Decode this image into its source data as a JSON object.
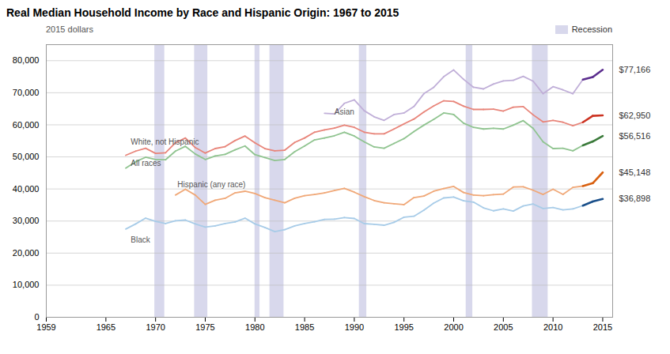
{
  "chart_data": {
    "type": "line",
    "title": "Real Median Household Income by Race and Hispanic Origin: 1967 to 2015",
    "subtitle": "2015 dollars",
    "x": [
      1967,
      1968,
      1969,
      1970,
      1971,
      1972,
      1973,
      1974,
      1975,
      1976,
      1977,
      1978,
      1979,
      1980,
      1981,
      1982,
      1983,
      1984,
      1985,
      1986,
      1987,
      1988,
      1989,
      1990,
      1991,
      1992,
      1993,
      1994,
      1995,
      1996,
      1997,
      1998,
      1999,
      2000,
      2001,
      2002,
      2003,
      2004,
      2005,
      2006,
      2007,
      2008,
      2009,
      2010,
      2011,
      2012,
      2013,
      2014,
      2015
    ],
    "series": [
      {
        "name": "Black",
        "values": [
          27500,
          29100,
          30900,
          29900,
          29200,
          30100,
          30300,
          29100,
          28100,
          28500,
          29200,
          29700,
          30900,
          29100,
          28000,
          26700,
          27300,
          28500,
          29200,
          29800,
          30500,
          30600,
          31100,
          30800,
          29200,
          29000,
          28700,
          29600,
          31200,
          31500,
          33400,
          35600,
          37200,
          37500,
          36300,
          35900,
          34100,
          33200,
          33800,
          33100,
          34700,
          35300,
          33900,
          34200,
          33500,
          33800,
          34800,
          36100,
          36898
        ],
        "colors": [
          "#a8cce8",
          "#a8cce8",
          "#a8cce8",
          "#a8cce8",
          "#a8cce8",
          "#a8cce8",
          "#a8cce8",
          "#a8cce8",
          "#a8cce8",
          "#a8cce8",
          "#a8cce8",
          "#a8cce8",
          "#a8cce8",
          "#a8cce8",
          "#a8cce8",
          "#a8cce8",
          "#a8cce8",
          "#a8cce8",
          "#a8cce8",
          "#a8cce8",
          "#a8cce8",
          "#a8cce8",
          "#a8cce8",
          "#a8cce8",
          "#a8cce8",
          "#a8cce8",
          "#a8cce8",
          "#a8cce8",
          "#a8cce8",
          "#a8cce8",
          "#a8cce8",
          "#a8cce8",
          "#a8cce8",
          "#a8cce8",
          "#a8cce8",
          "#a8cce8",
          "#a8cce8",
          "#a8cce8",
          "#a8cce8",
          "#a8cce8",
          "#a8cce8",
          "#a8cce8",
          "#a8cce8",
          "#a8cce8",
          "#a8cce8",
          "#a8cce8",
          "#a8cce8",
          "#1a4f8a",
          "#1a4f8a"
        ]
      },
      {
        "name": "Hispanic (any race)",
        "values": [
          null,
          null,
          null,
          null,
          null,
          38100,
          39900,
          38100,
          35200,
          36500,
          37100,
          38800,
          39300,
          38600,
          37300,
          36500,
          35700,
          37100,
          37900,
          38300,
          38800,
          39500,
          40200,
          39000,
          37600,
          36400,
          35700,
          35400,
          35100,
          37300,
          37800,
          39300,
          40100,
          40800,
          38900,
          38100,
          37900,
          38200,
          38400,
          40600,
          40700,
          39600,
          38300,
          39900,
          38300,
          40500,
          40900,
          41800,
          45148
        ],
        "colors": [
          null,
          null,
          null,
          null,
          null,
          "#f0a878",
          "#f0a878",
          "#f0a878",
          "#f0a878",
          "#f0a878",
          "#f0a878",
          "#f0a878",
          "#f0a878",
          "#f0a878",
          "#f0a878",
          "#f0a878",
          "#f0a878",
          "#f0a878",
          "#f0a878",
          "#f0a878",
          "#f0a878",
          "#f0a878",
          "#f0a878",
          "#f0a878",
          "#f0a878",
          "#f0a878",
          "#f0a878",
          "#f0a878",
          "#f0a878",
          "#f0a878",
          "#f0a878",
          "#f0a878",
          "#f0a878",
          "#f0a878",
          "#f0a878",
          "#f0a878",
          "#f0a878",
          "#f0a878",
          "#f0a878",
          "#f0a878",
          "#f0a878",
          "#f0a878",
          "#f0a878",
          "#f0a878",
          "#f0a878",
          "#f0a878",
          "#f0a878",
          "#d86010",
          "#d86010"
        ]
      },
      {
        "name": "All races",
        "values": [
          46500,
          48500,
          49900,
          49200,
          49100,
          51800,
          53300,
          50900,
          49200,
          50300,
          50800,
          52200,
          53400,
          50700,
          49800,
          48900,
          49200,
          51600,
          53400,
          55300,
          55900,
          56600,
          57700,
          56500,
          54700,
          53100,
          52700,
          54200,
          55700,
          57900,
          59900,
          61700,
          63700,
          63200,
          60500,
          59200,
          58700,
          58900,
          58700,
          59900,
          61300,
          58900,
          54700,
          52600,
          52700,
          51900,
          53600,
          54800,
          56516
        ],
        "colors": [
          "#90c490",
          "#90c490",
          "#90c490",
          "#90c490",
          "#90c490",
          "#90c490",
          "#90c490",
          "#90c490",
          "#90c490",
          "#90c490",
          "#90c490",
          "#90c490",
          "#90c490",
          "#90c490",
          "#90c490",
          "#90c490",
          "#90c490",
          "#90c490",
          "#90c490",
          "#90c490",
          "#90c490",
          "#90c490",
          "#90c490",
          "#90c490",
          "#90c490",
          "#90c490",
          "#90c490",
          "#90c490",
          "#90c490",
          "#90c490",
          "#90c490",
          "#90c490",
          "#90c490",
          "#90c490",
          "#90c490",
          "#90c490",
          "#90c490",
          "#90c490",
          "#90c490",
          "#90c490",
          "#90c490",
          "#90c490",
          "#90c490",
          "#90c490",
          "#90c490",
          "#90c490",
          "#90c490",
          "#3a7a3a",
          "#3a7a3a"
        ]
      },
      {
        "name": "White, not Hispanic",
        "values": [
          50500,
          51800,
          52700,
          51100,
          51300,
          54400,
          55900,
          52900,
          51200,
          52600,
          53200,
          55100,
          56500,
          54400,
          52600,
          51900,
          52100,
          54500,
          55900,
          57700,
          58400,
          59000,
          59900,
          59200,
          57700,
          57200,
          57200,
          58700,
          60300,
          61800,
          64000,
          65900,
          67500,
          67300,
          65800,
          64800,
          64800,
          64900,
          64300,
          65500,
          65700,
          63100,
          60900,
          61400,
          60800,
          59700,
          60800,
          62800,
          62950
        ],
        "colors": [
          "#e8857a",
          "#e8857a",
          "#e8857a",
          "#e8857a",
          "#e8857a",
          "#e8857a",
          "#e8857a",
          "#e8857a",
          "#e8857a",
          "#e8857a",
          "#e8857a",
          "#e8857a",
          "#e8857a",
          "#e8857a",
          "#e8857a",
          "#e8857a",
          "#e8857a",
          "#e8857a",
          "#e8857a",
          "#e8857a",
          "#e8857a",
          "#e8857a",
          "#e8857a",
          "#e8857a",
          "#e8857a",
          "#e8857a",
          "#e8857a",
          "#e8857a",
          "#e8857a",
          "#e8857a",
          "#e8857a",
          "#e8857a",
          "#e8857a",
          "#e8857a",
          "#e8857a",
          "#e8857a",
          "#e8857a",
          "#e8857a",
          "#e8857a",
          "#e8857a",
          "#e8857a",
          "#e8857a",
          "#e8857a",
          "#e8857a",
          "#e8857a",
          "#e8857a",
          "#e8857a",
          "#cc3322",
          "#cc3322"
        ]
      },
      {
        "name": "Asian",
        "values": [
          null,
          null,
          null,
          null,
          null,
          null,
          null,
          null,
          null,
          null,
          null,
          null,
          null,
          null,
          null,
          null,
          null,
          null,
          null,
          null,
          63600,
          63400,
          66700,
          67800,
          64400,
          62500,
          61400,
          63200,
          63700,
          65700,
          69700,
          71700,
          75000,
          77100,
          74200,
          71700,
          71200,
          72700,
          73700,
          73900,
          75100,
          73600,
          69700,
          71900,
          70900,
          69700,
          74100,
          74900,
          77166
        ],
        "colors": [
          null,
          null,
          null,
          null,
          null,
          null,
          null,
          null,
          null,
          null,
          null,
          null,
          null,
          null,
          null,
          null,
          null,
          null,
          null,
          null,
          "#c0afd8",
          "#c0afd8",
          "#c0afd8",
          "#c0afd8",
          "#c0afd8",
          "#c0afd8",
          "#c0afd8",
          "#c0afd8",
          "#c0afd8",
          "#c0afd8",
          "#c0afd8",
          "#c0afd8",
          "#c0afd8",
          "#c0afd8",
          "#c0afd8",
          "#c0afd8",
          "#c0afd8",
          "#c0afd8",
          "#c0afd8",
          "#c0afd8",
          "#c0afd8",
          "#c0afd8",
          "#c0afd8",
          "#c0afd8",
          "#c0afd8",
          "#c0afd8",
          "#c0afd8",
          "#5b2d8e",
          "#5b2d8e"
        ]
      }
    ],
    "recessions": {
      "name": "Recession",
      "color": "#d8d8ec",
      "periods": [
        [
          1969.917,
          1970.917
        ],
        [
          1973.917,
          1975.25
        ],
        [
          1980.0,
          1980.5
        ],
        [
          1981.5,
          1982.917
        ],
        [
          1990.5,
          1991.25
        ],
        [
          2001.25,
          2001.917
        ],
        [
          2007.917,
          2009.5
        ]
      ]
    },
    "legend": "top-right",
    "annotations": [
      {
        "text": "Asian",
        "x": 1988.0,
        "y": 64000
      },
      {
        "text": "White, not Hispanic",
        "x": 1967.5,
        "y": 54600
      },
      {
        "text": "All races",
        "x": 1967.5,
        "y": 48000
      },
      {
        "text": "Hispanic (any race)",
        "x": 1972.2,
        "y": 41300
      },
      {
        "text": "Black",
        "x": 1967.5,
        "y": 24000
      },
      {
        "text": "$77,166",
        "y": 77166
      },
      {
        "text": "$62,950",
        "y": 62950
      },
      {
        "text": "$56,516",
        "y": 56516
      },
      {
        "text": "$45,148",
        "y": 45148
      },
      {
        "text": "$36,898",
        "y": 36898
      }
    ],
    "xlim": [
      1959,
      2016
    ],
    "ylim": [
      0,
      85000
    ],
    "xticks": [
      1959,
      1965,
      1970,
      1975,
      1980,
      1985,
      1990,
      1995,
      2000,
      2005,
      2010,
      2015
    ],
    "yticks": [
      0,
      {
        "value": 10000,
        "label": "10,000"
      },
      {
        "value": 20000,
        "label": "20,000"
      },
      {
        "value": 30000,
        "label": "30,000"
      },
      {
        "value": 40000,
        "label": "40,000"
      },
      {
        "value": 50000,
        "label": "50,000"
      },
      {
        "value": 60000,
        "label": "60,000"
      },
      {
        "value": 70000,
        "label": "70,000"
      },
      {
        "value": 80000,
        "label": "80,000"
      }
    ],
    "grid": true
  }
}
